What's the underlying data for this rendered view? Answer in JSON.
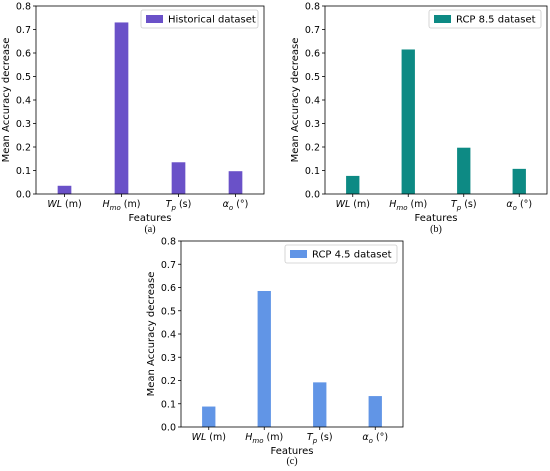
{
  "chart_data": [
    {
      "type": "bar",
      "panel_label": "(a)",
      "categories": [
        "WL (m)",
        "H_mo (m)",
        "T_p (s)",
        "α_o (°)"
      ],
      "values": [
        0.035,
        0.73,
        0.135,
        0.097
      ],
      "series_name": "Historical dataset",
      "color": "#6a51c8",
      "xlabel": "Features",
      "ylabel": "Mean Accuracy decrease",
      "ylim": [
        0,
        0.8
      ],
      "yticks": [
        "0.0",
        "0.1",
        "0.2",
        "0.3",
        "0.4",
        "0.5",
        "0.6",
        "0.7",
        "0.8"
      ],
      "legend_position": "top-right",
      "grid": false
    },
    {
      "type": "bar",
      "panel_label": "(b)",
      "categories": [
        "WL (m)",
        "H_mo (m)",
        "T_p (s)",
        "α_o (°)"
      ],
      "values": [
        0.077,
        0.615,
        0.197,
        0.107
      ],
      "series_name": "RCP 8.5 dataset",
      "color": "#0d8a84",
      "xlabel": "Features",
      "ylabel": "Mean Accuracy decrease",
      "ylim": [
        0,
        0.8
      ],
      "yticks": [
        "0.0",
        "0.1",
        "0.2",
        "0.3",
        "0.4",
        "0.5",
        "0.6",
        "0.7",
        "0.8"
      ],
      "legend_position": "top-right",
      "grid": false
    },
    {
      "type": "bar",
      "panel_label": "(c)",
      "categories": [
        "WL (m)",
        "H_mo (m)",
        "T_p (s)",
        "α_o (°)"
      ],
      "values": [
        0.088,
        0.585,
        0.192,
        0.133
      ],
      "series_name": "RCP 4.5 dataset",
      "color": "#6195e6",
      "xlabel": "Features",
      "ylabel": "Mean Accuracy decrease",
      "ylim": [
        0,
        0.8
      ],
      "yticks": [
        "0.0",
        "0.1",
        "0.2",
        "0.3",
        "0.4",
        "0.5",
        "0.6",
        "0.7",
        "0.8"
      ],
      "legend_position": "top-right",
      "grid": false
    }
  ]
}
